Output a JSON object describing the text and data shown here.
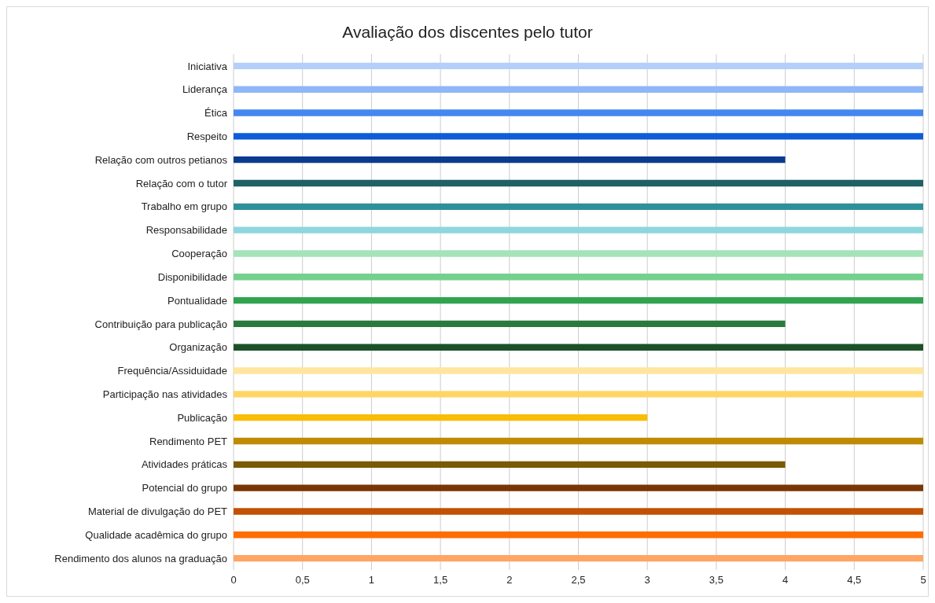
{
  "chart_data": {
    "type": "bar",
    "orientation": "horizontal",
    "title": "Avaliação dos discentes pelo tutor",
    "categories": [
      "Iniciativa",
      "Liderança",
      "Ética",
      "Respeito",
      "Relação com outros petianos",
      "Relação com o tutor",
      "Trabalho em grupo",
      "Responsabilidade",
      "Cooperação",
      "Disponibilidade",
      "Pontualidade",
      "Contribuição para publicação",
      "Organização",
      "Frequência/Assiduidade",
      "Participação nas atividades",
      "Publicação",
      "Rendimento PET",
      "Atividades práticas",
      "Potencial do grupo",
      "Material de divulgação do PET",
      "Qualidade acadêmica do grupo",
      "Rendimento dos alunos na graduação"
    ],
    "values": [
      5,
      5,
      5,
      5,
      4,
      5,
      5,
      5,
      5,
      5,
      5,
      4,
      5,
      5,
      5,
      3,
      5,
      4,
      5,
      5,
      5,
      5
    ],
    "colors": [
      "#b4cffa",
      "#8fb7f7",
      "#4487f0",
      "#0f5cd9",
      "#0c3a8f",
      "#1f6165",
      "#2e9199",
      "#8fd6dd",
      "#a5e3b8",
      "#76d08d",
      "#32a350",
      "#2a7a3e",
      "#1c5128",
      "#ffe59e",
      "#ffd666",
      "#fbbc04",
      "#bf8a04",
      "#7a5a04",
      "#7a3604",
      "#c35104",
      "#ff6d01",
      "#ffa664"
    ],
    "xlim": [
      0,
      5
    ],
    "xticks": [
      0,
      {
        "value": 0.5,
        "label": "0,5"
      },
      1,
      {
        "value": 1.5,
        "label": "1,5"
      },
      2,
      {
        "value": 2.5,
        "label": "2,5"
      },
      3,
      {
        "value": 3.5,
        "label": "3,5"
      },
      4,
      {
        "value": 4.5,
        "label": "4,5"
      },
      5
    ],
    "grid": "x",
    "legend": false
  }
}
